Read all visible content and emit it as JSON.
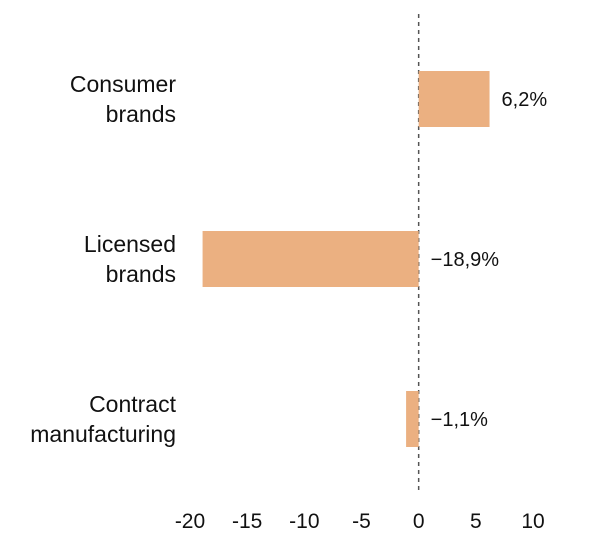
{
  "chart_data": {
    "type": "bar",
    "orientation": "horizontal",
    "categories": [
      [
        "Consumer",
        "brands"
      ],
      [
        "Licensed",
        "brands"
      ],
      [
        "Contract",
        "manufacturing"
      ]
    ],
    "values": [
      6.2,
      -18.9,
      -1.1
    ],
    "value_labels": [
      "6,2%",
      "−18,9%",
      "−1,1%"
    ],
    "x_ticks": [
      -20,
      -15,
      -10,
      -5,
      0,
      5,
      10
    ],
    "x_tick_labels": [
      "-20",
      "-15",
      "-10",
      "-5",
      "0",
      "5",
      "10"
    ],
    "xlim": [
      -20,
      10
    ],
    "zero_line": "dashed",
    "grid": false,
    "bar_color": "#ebb081",
    "title": "",
    "xlabel": "",
    "ylabel": ""
  }
}
